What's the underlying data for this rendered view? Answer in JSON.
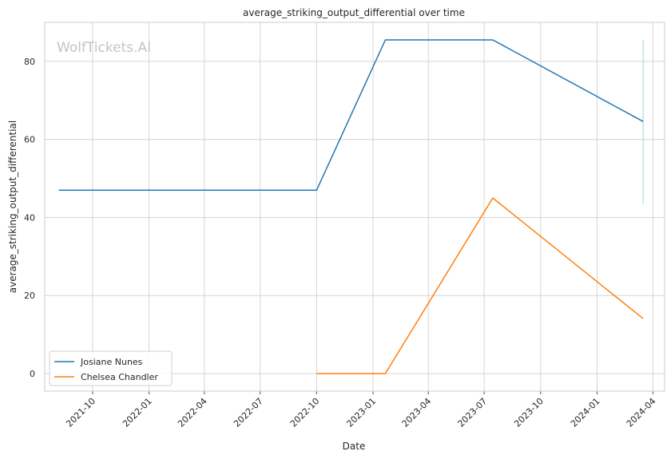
{
  "chart_data": {
    "type": "line",
    "title": "average_striking_output_differential over time",
    "xlabel": "Date",
    "ylabel": "average_striking_output_differential",
    "watermark": "WolfTickets.AI",
    "x_ticks": [
      "2021-10",
      "2022-01",
      "2022-04",
      "2022-07",
      "2022-10",
      "2023-01",
      "2023-04",
      "2023-07",
      "2023-10",
      "2024-01",
      "2024-04"
    ],
    "y_ticks": [
      0,
      20,
      40,
      60,
      80
    ],
    "ylim": [
      -4.5,
      90
    ],
    "xlim": [
      "2021-07-15",
      "2024-04-20"
    ],
    "grid": true,
    "legend_position": "lower-left",
    "series": [
      {
        "name": "Josiane Nunes",
        "color": "#1f77b4",
        "points": [
          {
            "x": "2021-08-07",
            "y": 47
          },
          {
            "x": "2022-10-01",
            "y": 47
          },
          {
            "x": "2023-01-21",
            "y": 85.5
          },
          {
            "x": "2023-07-15",
            "y": 85.5
          },
          {
            "x": "2024-03-16",
            "y": 64.6
          }
        ]
      },
      {
        "name": "Chelsea Chandler",
        "color": "#ff7f0e",
        "points": [
          {
            "x": "2022-10-01",
            "y": 0
          },
          {
            "x": "2023-01-21",
            "y": 0
          },
          {
            "x": "2023-07-15",
            "y": 45
          },
          {
            "x": "2024-03-16",
            "y": 14.1
          }
        ]
      }
    ],
    "reference_line": {
      "x": "2024-03-16",
      "y_from": 43.5,
      "y_to": 85.5,
      "color": "#9fd8c8"
    }
  }
}
